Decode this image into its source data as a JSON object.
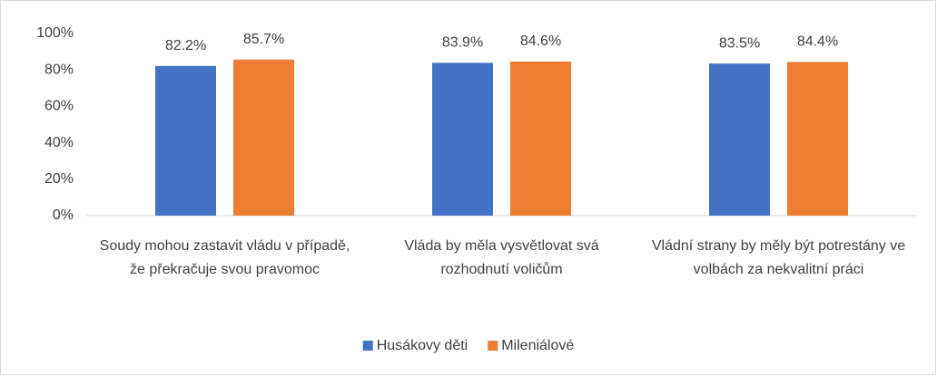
{
  "chart_data": {
    "type": "bar",
    "categories": [
      "Soudy mohou zastavit vládu v případě, že překračuje svou pravomoc",
      "Vláda by měla vysvětlovat svá rozhodnutí voličům",
      "Vládní strany by měly být potrestány ve volbách za nekvalitní práci"
    ],
    "series": [
      {
        "name": "Husákovy děti",
        "color": "#4472c4",
        "values": [
          82.2,
          83.9,
          83.5
        ],
        "value_labels": [
          "82.2%",
          "83.9%",
          "83.5%"
        ]
      },
      {
        "name": "Mileniálové",
        "color": "#ed7d31",
        "values": [
          85.7,
          84.6,
          84.4
        ],
        "value_labels": [
          "85.7%",
          "84.6%",
          "84.4%"
        ]
      }
    ],
    "ylim": [
      0,
      100
    ],
    "yticks": [
      {
        "value": 0,
        "label": "0%"
      },
      {
        "value": 20,
        "label": "20%"
      },
      {
        "value": 40,
        "label": "40%"
      },
      {
        "value": 60,
        "label": "60%"
      },
      {
        "value": 80,
        "label": "80%"
      },
      {
        "value": 100,
        "label": "100%"
      }
    ],
    "grid": false,
    "legend": "bottom"
  }
}
